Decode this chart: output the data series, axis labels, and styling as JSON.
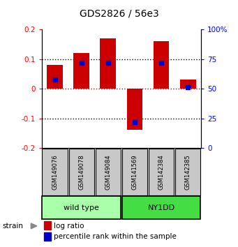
{
  "title": "GDS2826 / 56e3",
  "samples": [
    "GSM149076",
    "GSM149078",
    "GSM149084",
    "GSM141569",
    "GSM142384",
    "GSM142385"
  ],
  "log_ratios": [
    0.08,
    0.12,
    0.17,
    -0.14,
    0.16,
    0.03
  ],
  "percentile_ranks": [
    58,
    72,
    72,
    22,
    72,
    51
  ],
  "ylim_left": [
    -0.2,
    0.2
  ],
  "yticks_left": [
    -0.2,
    -0.1,
    0.0,
    0.1,
    0.2
  ],
  "yticks_right_labels": [
    "0",
    "25",
    "50",
    "75",
    "100%"
  ],
  "groups": [
    {
      "label": "wild type",
      "indices": [
        0,
        1,
        2
      ],
      "color": "#AAFFAA"
    },
    {
      "label": "NY1DD",
      "indices": [
        3,
        4,
        5
      ],
      "color": "#44DD44"
    }
  ],
  "bar_color": "#CC0000",
  "marker_color": "#0000CC",
  "bar_width": 0.6,
  "hline_color": "#CC0000",
  "dotted_color": "#000000",
  "background_color": "#FFFFFF",
  "sample_box_color": "#C8C8C8",
  "strain_label": "strain",
  "legend_items": [
    "log ratio",
    "percentile rank within the sample"
  ]
}
